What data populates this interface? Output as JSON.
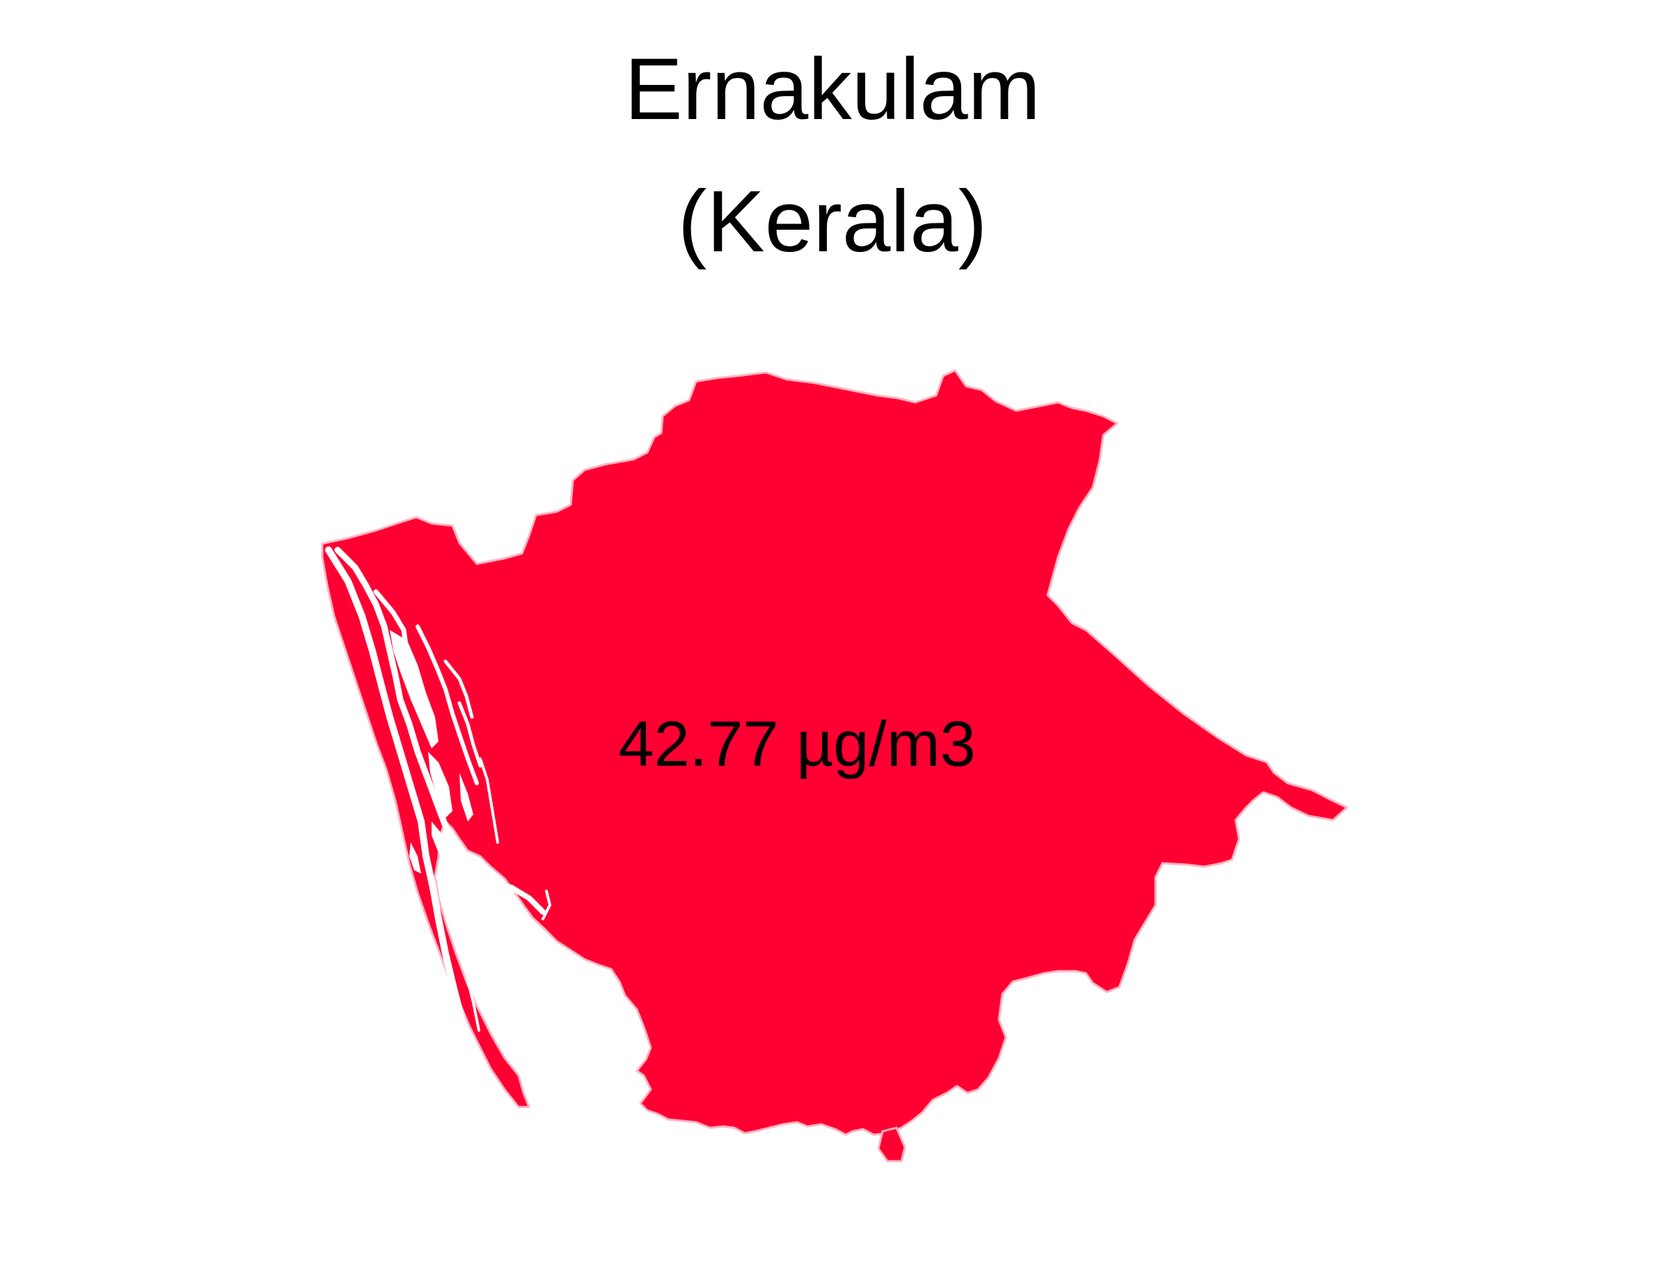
{
  "map": {
    "title_line1": "Ernakulam",
    "title_line2": "(Kerala)",
    "value_label": "42.77 µg/m3",
    "value": 42.77,
    "unit": "µg/m3",
    "region_fill": "#ff0033",
    "region_stroke": "#ffb3c0",
    "background": "#ffffff"
  }
}
